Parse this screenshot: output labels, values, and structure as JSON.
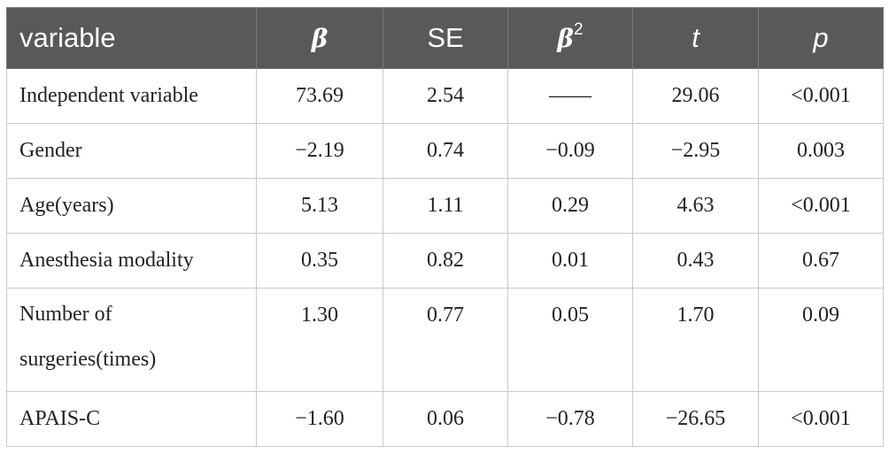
{
  "table": {
    "headers": {
      "variable": "variable",
      "beta": "β",
      "se": "SE",
      "beta2": "β",
      "beta2_sup": "2",
      "t": "t",
      "p": "p"
    },
    "rows": [
      {
        "label": "Independent variable",
        "beta": "73.69",
        "se": "2.54",
        "beta2": "——",
        "t": "29.06",
        "p": "<0.001"
      },
      {
        "label": "Gender",
        "beta": "−2.19",
        "se": "0.74",
        "beta2": "−0.09",
        "t": "−2.95",
        "p": "0.003"
      },
      {
        "label": "Age(years)",
        "beta": "5.13",
        "se": "1.11",
        "beta2": "0.29",
        "t": "4.63",
        "p": "<0.001"
      },
      {
        "label": "Anesthesia modality",
        "beta": "0.35",
        "se": "0.82",
        "beta2": "0.01",
        "t": "0.43",
        "p": "0.67"
      },
      {
        "label_line1": "Number of",
        "label_line2": "surgeries(times)",
        "beta": "1.30",
        "se": "0.77",
        "beta2": "0.05",
        "t": "1.70",
        "p": "0.09"
      },
      {
        "label": "APAIS-C",
        "beta": "−1.60",
        "se": "0.06",
        "beta2": "−0.78",
        "t": "−26.65",
        "p": "<0.001"
      }
    ]
  },
  "colors": {
    "header_bg": "#595959",
    "header_text": "#ffffff",
    "border": "#c9c9c9",
    "body_text": "#222222"
  }
}
